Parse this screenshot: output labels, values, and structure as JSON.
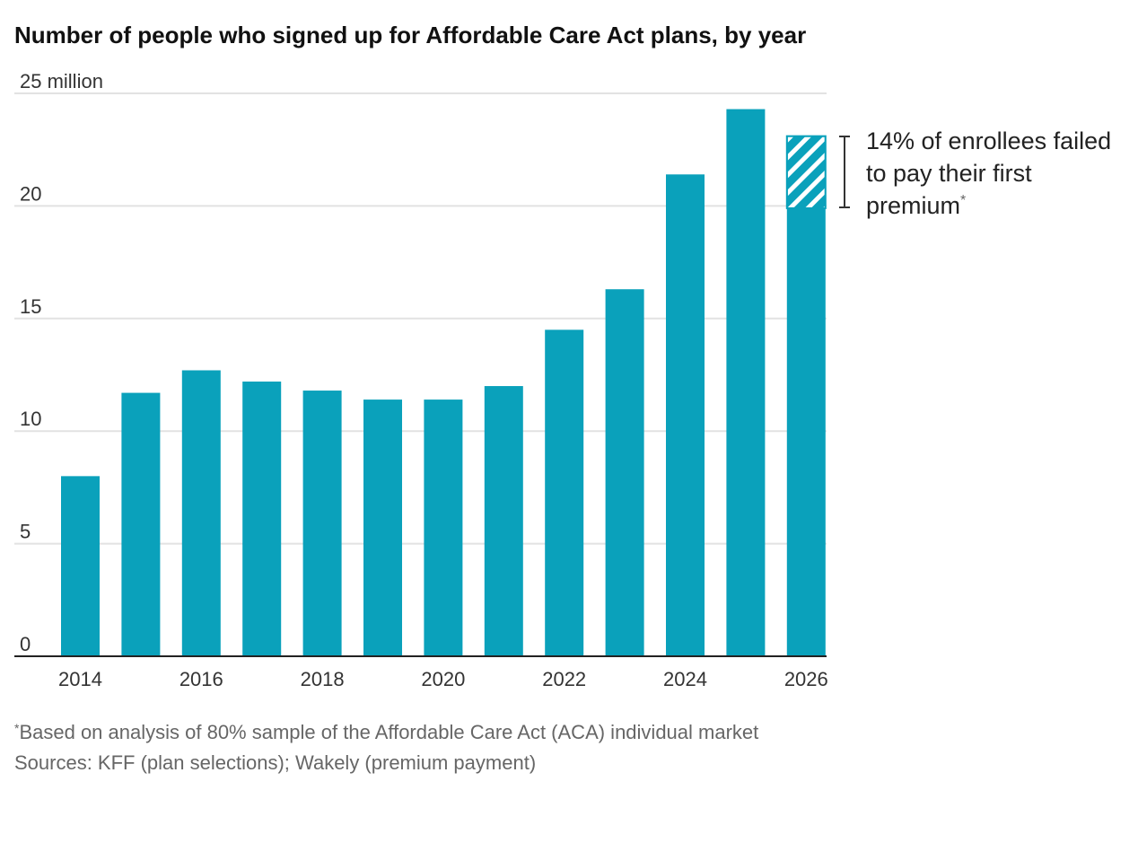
{
  "chart_data": {
    "type": "bar",
    "title": "Number of people who signed up for Affordable Care Act plans, by year",
    "xlabel": "",
    "ylabel": "",
    "ylim": [
      0,
      25
    ],
    "y_ticks": [
      0,
      5,
      10,
      15,
      20,
      25
    ],
    "y_tick_labels": [
      "0",
      "5",
      "10",
      "15",
      "20",
      "25 million"
    ],
    "grid": true,
    "categories": [
      "2014",
      "2015",
      "2016",
      "2017",
      "2018",
      "2019",
      "2020",
      "2021",
      "2022",
      "2023",
      "2024",
      "2025",
      "2026"
    ],
    "x_tick_labels": [
      "2014",
      "2016",
      "2018",
      "2020",
      "2022",
      "2024",
      "2026"
    ],
    "values": [
      8.0,
      11.7,
      12.7,
      12.2,
      11.8,
      11.4,
      11.4,
      12.0,
      14.5,
      16.3,
      21.4,
      24.3,
      23.1
    ],
    "hatched_segment": {
      "category": "2026",
      "from": 19.9,
      "to": 23.1
    },
    "annotation": {
      "lines": [
        "14% of enrollees failed",
        "to pay their first",
        "premium"
      ],
      "marker": "*"
    },
    "colors": {
      "bar": "#0aa1bb",
      "grid": "#e2e2e2",
      "axis": "#222222"
    }
  },
  "footnotes": {
    "note_marker": "*",
    "note": "Based on analysis of 80% sample of the Affordable Care Act (ACA) individual market",
    "sources": "Sources: KFF (plan selections); Wakely (premium payment)"
  }
}
